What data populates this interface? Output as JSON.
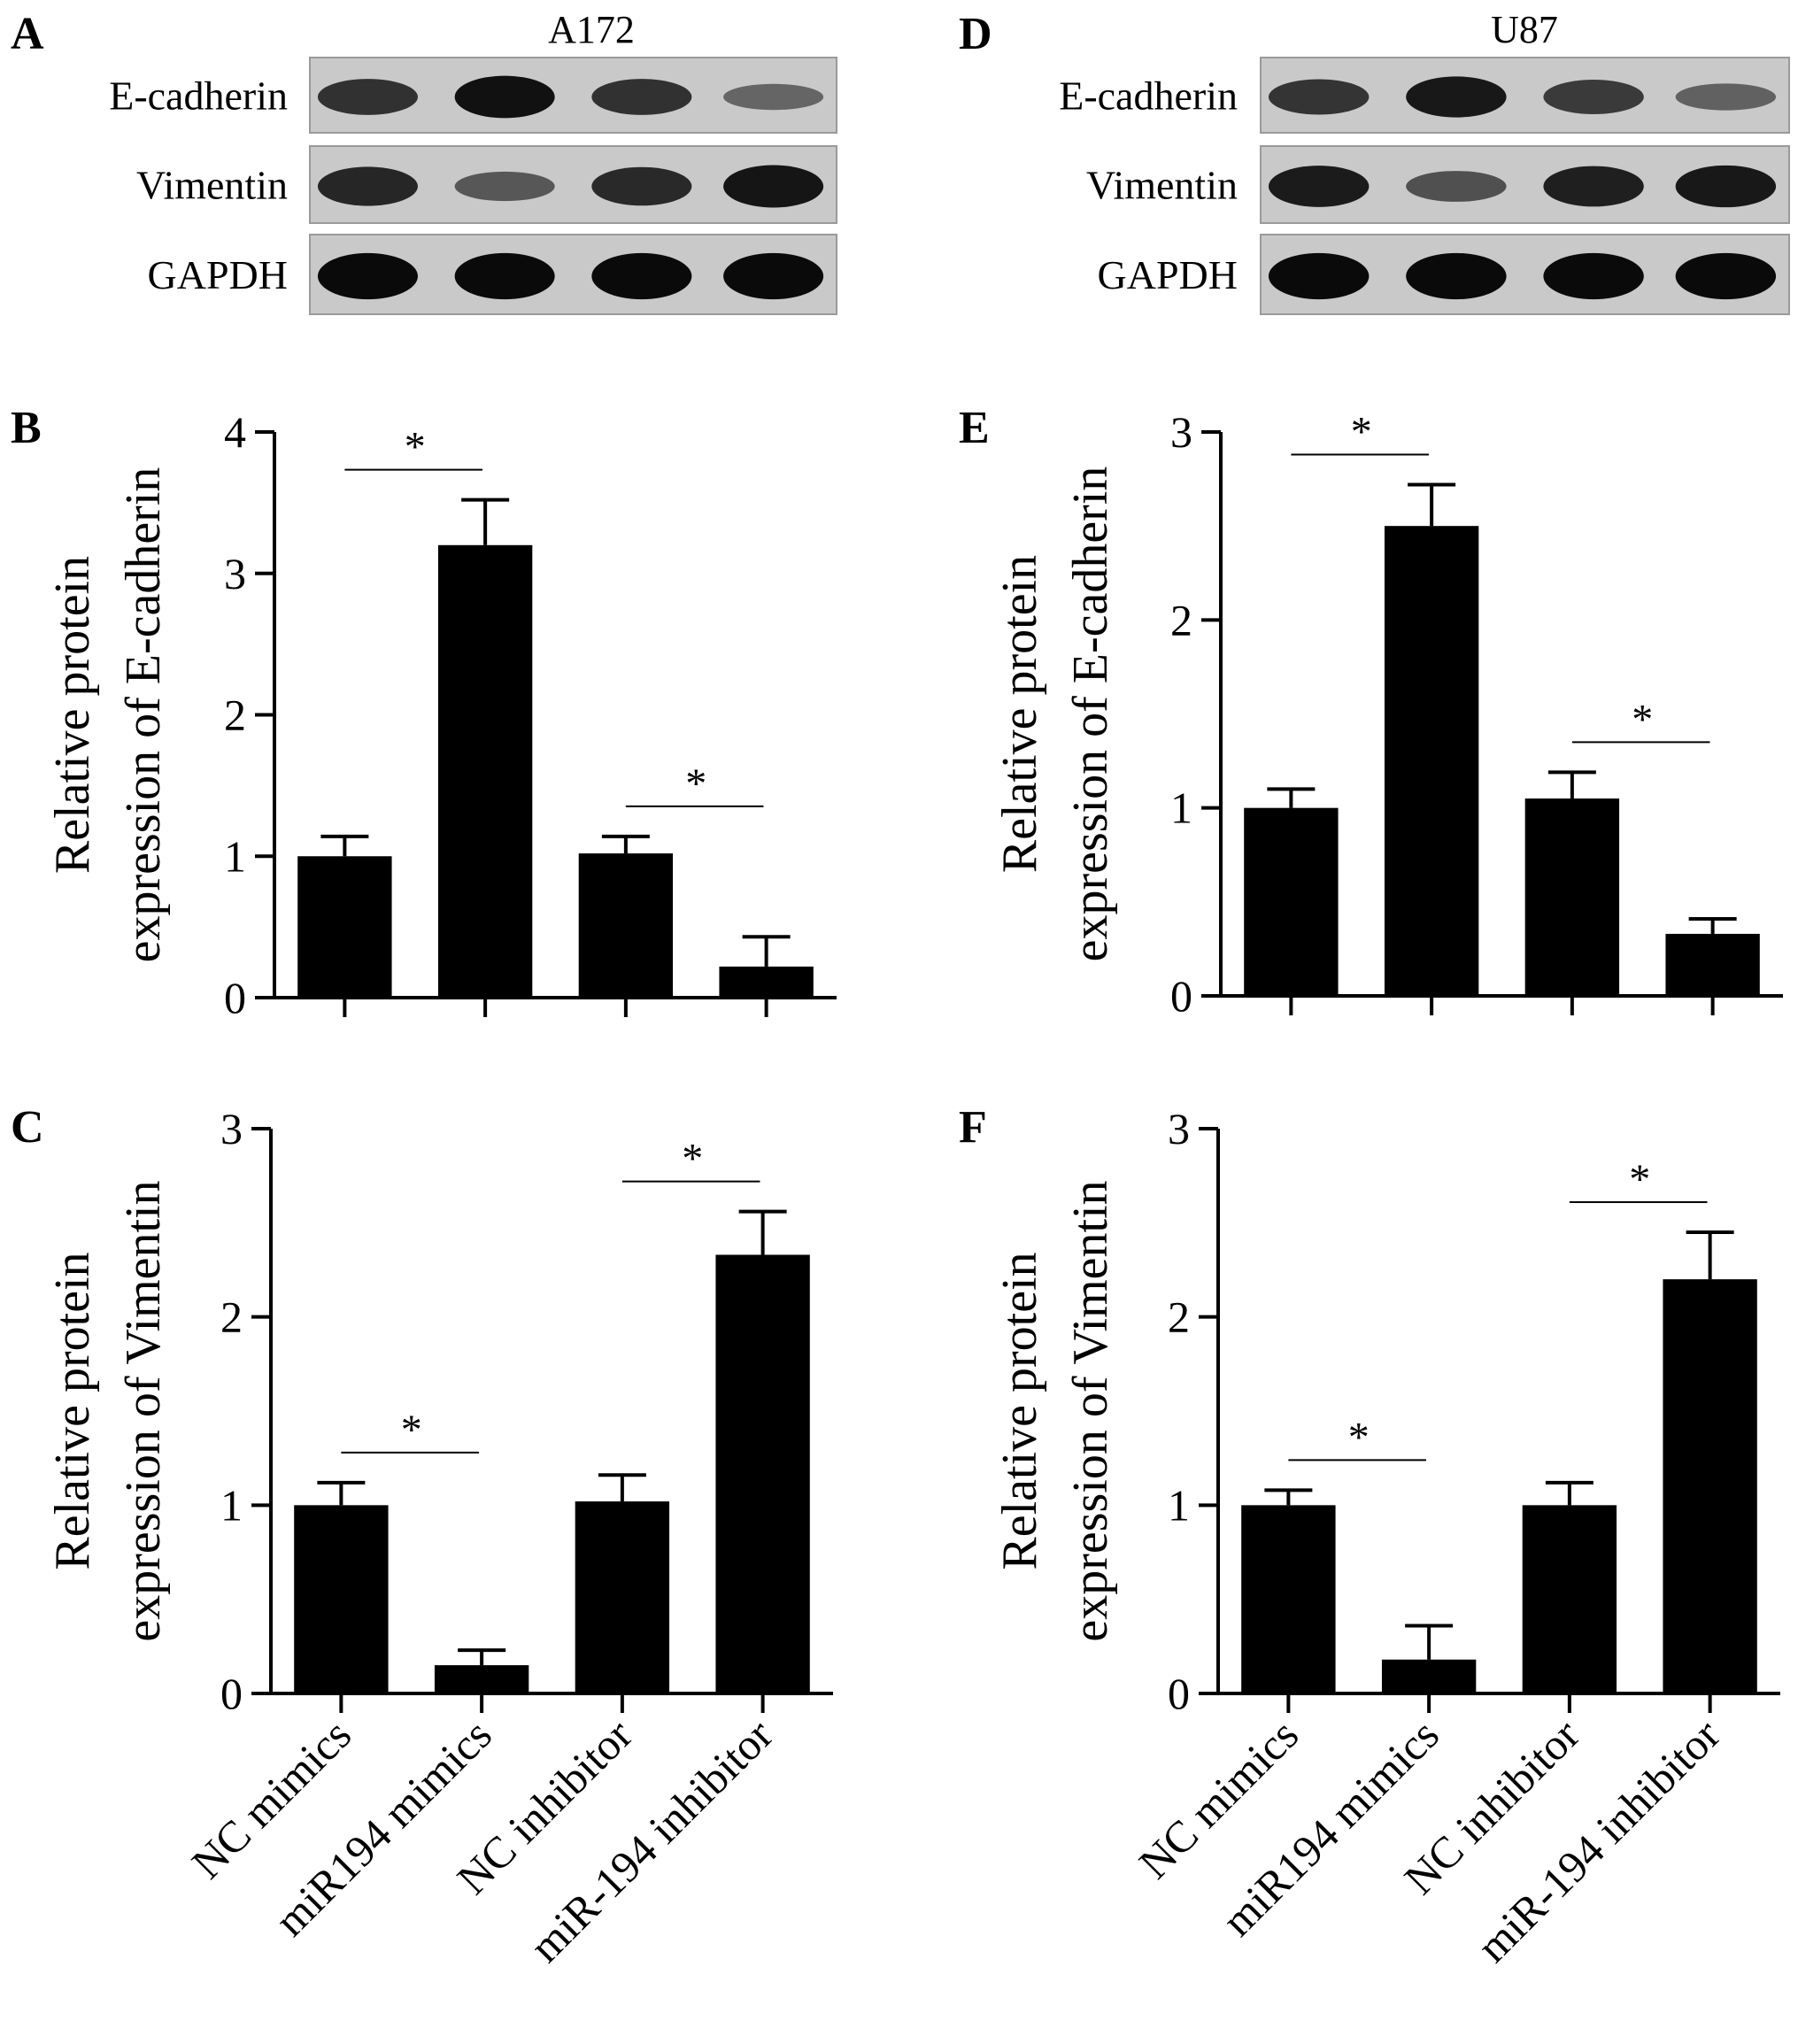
{
  "figure": {
    "blots": [
      {
        "panel": "A",
        "title": "A172",
        "rows": [
          {
            "label": "E-cadherin",
            "intensities": [
              0.72,
              0.95,
              0.72,
              0.35
            ]
          },
          {
            "label": "Vimentin",
            "intensities": [
              0.8,
              0.45,
              0.78,
              0.92
            ]
          },
          {
            "label": "GAPDH",
            "intensities": [
              1.0,
              1.0,
              1.0,
              1.0
            ]
          }
        ]
      },
      {
        "panel": "D",
        "title": "U87",
        "rows": [
          {
            "label": "E-cadherin",
            "intensities": [
              0.7,
              0.9,
              0.66,
              0.38
            ]
          },
          {
            "label": "Vimentin",
            "intensities": [
              0.88,
              0.5,
              0.85,
              0.9
            ]
          },
          {
            "label": "GAPDH",
            "intensities": [
              1.0,
              1.0,
              1.0,
              1.0
            ]
          }
        ]
      }
    ]
  },
  "chart_data": [
    {
      "panel": "B",
      "type": "bar",
      "ylabel": [
        "Relative protein",
        "expression of E-cadherin"
      ],
      "categories": [
        "NC mimics",
        "miR194 mimics",
        "NC inhibitor",
        "miR-194 inhibitor"
      ],
      "values": [
        1.0,
        3.2,
        1.02,
        0.22
      ],
      "errors": [
        0.14,
        0.32,
        0.12,
        0.21
      ],
      "ylim": [
        0,
        4
      ],
      "yticks": [
        "0",
        "1",
        "2",
        "3",
        "4"
      ],
      "significance": [
        {
          "pair": [
            0,
            1
          ],
          "label": "*"
        },
        {
          "pair": [
            2,
            3
          ],
          "label": "*"
        }
      ]
    },
    {
      "panel": "C",
      "type": "bar",
      "ylabel": [
        "Relative protein",
        "expression of Vimentin"
      ],
      "categories": [
        "NC mimics",
        "miR194 mimics",
        "NC inhibitor",
        "miR-194 inhibitor"
      ],
      "values": [
        1.0,
        0.15,
        1.02,
        2.33
      ],
      "errors": [
        0.12,
        0.08,
        0.14,
        0.23
      ],
      "ylim": [
        0,
        3
      ],
      "yticks": [
        "0",
        "1",
        "2",
        "3"
      ],
      "significance": [
        {
          "pair": [
            0,
            1
          ],
          "label": "*"
        },
        {
          "pair": [
            2,
            3
          ],
          "label": "*"
        }
      ]
    },
    {
      "panel": "E",
      "type": "bar",
      "ylabel": [
        "Relative protein",
        "expression of E-cadherin"
      ],
      "categories": [
        "NC mimics",
        "miR194 mimics",
        "NC inhibitor",
        "miR-194 inhibitor"
      ],
      "values": [
        1.0,
        2.5,
        1.05,
        0.33
      ],
      "errors": [
        0.1,
        0.22,
        0.14,
        0.08
      ],
      "ylim": [
        0,
        3
      ],
      "yticks": [
        "0",
        "1",
        "2",
        "3"
      ],
      "significance": [
        {
          "pair": [
            0,
            1
          ],
          "label": "*"
        },
        {
          "pair": [
            2,
            3
          ],
          "label": "*"
        }
      ]
    },
    {
      "panel": "F",
      "type": "bar",
      "ylabel": [
        "Relative protein",
        "expression of Vimentin"
      ],
      "categories": [
        "NC mimics",
        "miR194 mimics",
        "NC inhibitor",
        "miR-194 inhibitor"
      ],
      "values": [
        1.0,
        0.18,
        1.0,
        2.2
      ],
      "errors": [
        0.08,
        0.18,
        0.12,
        0.25
      ],
      "ylim": [
        0,
        3
      ],
      "yticks": [
        "0",
        "1",
        "2",
        "3"
      ],
      "significance": [
        {
          "pair": [
            0,
            1
          ],
          "label": "*"
        },
        {
          "pair": [
            2,
            3
          ],
          "label": "*"
        }
      ]
    }
  ]
}
